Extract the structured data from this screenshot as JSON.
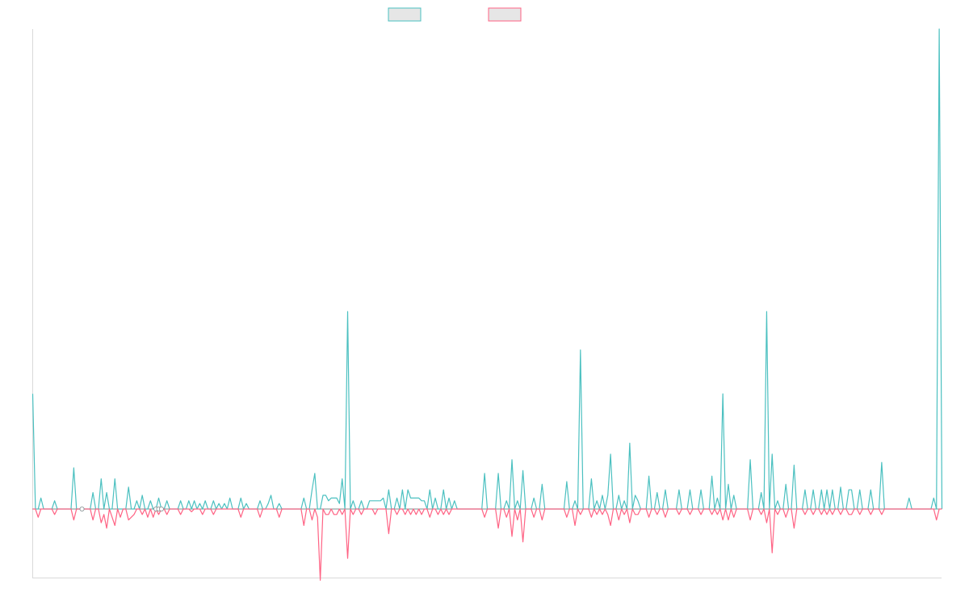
{
  "colors": {
    "series_up": "#4bc0c0",
    "series_down": "#ff6384",
    "legend_fill": "#e6e6e6",
    "axis": "#d9d9d9",
    "baseline": "#7f8c8d"
  },
  "chart_data": {
    "type": "line",
    "title": "",
    "xlabel": "",
    "ylabel": "",
    "grid": false,
    "legend_placement": "top",
    "n_points": 320,
    "ylim": [
      -0.25,
      1.75
    ],
    "baseline": 0,
    "series": [
      {
        "color": "#4bc0c0",
        "sparse_points": [
          [
            0,
            0.42
          ],
          [
            3,
            0.04
          ],
          [
            8,
            0.03
          ],
          [
            15,
            0.15
          ],
          [
            22,
            0.06
          ],
          [
            25,
            0.11
          ],
          [
            27,
            0.06
          ],
          [
            30,
            0.11
          ],
          [
            35,
            0.08
          ],
          [
            38,
            0.03
          ],
          [
            40,
            0.05
          ],
          [
            43,
            0.03
          ],
          [
            46,
            0.04
          ],
          [
            49,
            0.03
          ],
          [
            54,
            0.03
          ],
          [
            57,
            0.03
          ],
          [
            59,
            0.03
          ],
          [
            61,
            0.02
          ],
          [
            63,
            0.03
          ],
          [
            66,
            0.03
          ],
          [
            68,
            0.02
          ],
          [
            70,
            0.02
          ],
          [
            72,
            0.04
          ],
          [
            76,
            0.04
          ],
          [
            78,
            0.02
          ],
          [
            83,
            0.03
          ],
          [
            86,
            0.02
          ],
          [
            87,
            0.05
          ],
          [
            90,
            0.02
          ],
          [
            99,
            0.04
          ],
          [
            102,
            0.07
          ],
          [
            103,
            0.13
          ],
          [
            106,
            0.05
          ],
          [
            107,
            0.05
          ],
          [
            108,
            0.03
          ],
          [
            109,
            0.04
          ],
          [
            110,
            0.04
          ],
          [
            111,
            0.04
          ],
          [
            112,
            0.02
          ],
          [
            113,
            0.11
          ],
          [
            115,
            0.72
          ],
          [
            117,
            0.03
          ],
          [
            120,
            0.03
          ],
          [
            123,
            0.03
          ],
          [
            124,
            0.03
          ],
          [
            125,
            0.03
          ],
          [
            126,
            0.03
          ],
          [
            127,
            0.03
          ],
          [
            128,
            0.04
          ],
          [
            130,
            0.07
          ],
          [
            133,
            0.04
          ],
          [
            135,
            0.07
          ],
          [
            137,
            0.07
          ],
          [
            138,
            0.04
          ],
          [
            139,
            0.04
          ],
          [
            140,
            0.04
          ],
          [
            141,
            0.04
          ],
          [
            142,
            0.03
          ],
          [
            143,
            0.03
          ],
          [
            145,
            0.07
          ],
          [
            147,
            0.04
          ],
          [
            150,
            0.07
          ],
          [
            152,
            0.04
          ],
          [
            154,
            0.03
          ],
          [
            165,
            0.13
          ],
          [
            170,
            0.13
          ],
          [
            173,
            0.03
          ],
          [
            175,
            0.18
          ],
          [
            177,
            0.03
          ],
          [
            179,
            0.14
          ],
          [
            183,
            0.04
          ],
          [
            186,
            0.09
          ],
          [
            195,
            0.1
          ],
          [
            198,
            0.03
          ],
          [
            200,
            0.58
          ],
          [
            204,
            0.11
          ],
          [
            206,
            0.03
          ],
          [
            208,
            0.05
          ],
          [
            210,
            0.05
          ],
          [
            211,
            0.2
          ],
          [
            214,
            0.05
          ],
          [
            216,
            0.03
          ],
          [
            218,
            0.24
          ],
          [
            220,
            0.05
          ],
          [
            221,
            0.03
          ],
          [
            225,
            0.12
          ],
          [
            228,
            0.06
          ],
          [
            231,
            0.07
          ],
          [
            236,
            0.07
          ],
          [
            240,
            0.07
          ],
          [
            244,
            0.07
          ],
          [
            248,
            0.12
          ],
          [
            250,
            0.04
          ],
          [
            252,
            0.42
          ],
          [
            254,
            0.09
          ],
          [
            256,
            0.05
          ],
          [
            262,
            0.18
          ],
          [
            266,
            0.06
          ],
          [
            268,
            0.72
          ],
          [
            270,
            0.2
          ],
          [
            272,
            0.03
          ],
          [
            275,
            0.09
          ],
          [
            278,
            0.16
          ],
          [
            282,
            0.07
          ],
          [
            285,
            0.07
          ],
          [
            288,
            0.07
          ],
          [
            290,
            0.07
          ],
          [
            292,
            0.07
          ],
          [
            295,
            0.08
          ],
          [
            298,
            0.07
          ],
          [
            299,
            0.07
          ],
          [
            302,
            0.07
          ],
          [
            306,
            0.07
          ],
          [
            310,
            0.17
          ],
          [
            320,
            0.04
          ],
          [
            329,
            0.04
          ],
          [
            331,
            1.75
          ]
        ]
      },
      {
        "color": "#ff6384",
        "sparse_points": [
          [
            2,
            -0.03
          ],
          [
            8,
            -0.02
          ],
          [
            15,
            -0.04
          ],
          [
            22,
            -0.04
          ],
          [
            25,
            -0.05
          ],
          [
            26,
            -0.02
          ],
          [
            27,
            -0.07
          ],
          [
            29,
            -0.03
          ],
          [
            30,
            -0.06
          ],
          [
            32,
            -0.03
          ],
          [
            35,
            -0.04
          ],
          [
            36,
            -0.03
          ],
          [
            37,
            -0.02
          ],
          [
            40,
            -0.02
          ],
          [
            42,
            -0.03
          ],
          [
            44,
            -0.03
          ],
          [
            46,
            -0.02
          ],
          [
            49,
            -0.02
          ],
          [
            54,
            -0.02
          ],
          [
            58,
            -0.01
          ],
          [
            62,
            -0.02
          ],
          [
            66,
            -0.02
          ],
          [
            76,
            -0.03
          ],
          [
            83,
            -0.03
          ],
          [
            90,
            -0.03
          ],
          [
            99,
            -0.06
          ],
          [
            102,
            -0.04
          ],
          [
            104,
            -0.03
          ],
          [
            105,
            -0.26
          ],
          [
            107,
            -0.02
          ],
          [
            108,
            -0.02
          ],
          [
            110,
            -0.02
          ],
          [
            111,
            -0.02
          ],
          [
            113,
            -0.02
          ],
          [
            115,
            -0.18
          ],
          [
            117,
            -0.02
          ],
          [
            120,
            -0.02
          ],
          [
            125,
            -0.02
          ],
          [
            130,
            -0.09
          ],
          [
            133,
            -0.02
          ],
          [
            136,
            -0.02
          ],
          [
            138,
            -0.02
          ],
          [
            140,
            -0.02
          ],
          [
            142,
            -0.02
          ],
          [
            145,
            -0.03
          ],
          [
            148,
            -0.02
          ],
          [
            150,
            -0.02
          ],
          [
            152,
            -0.02
          ],
          [
            165,
            -0.03
          ],
          [
            170,
            -0.07
          ],
          [
            173,
            -0.03
          ],
          [
            175,
            -0.1
          ],
          [
            177,
            -0.04
          ],
          [
            179,
            -0.12
          ],
          [
            183,
            -0.03
          ],
          [
            186,
            -0.04
          ],
          [
            195,
            -0.03
          ],
          [
            198,
            -0.06
          ],
          [
            200,
            -0.02
          ],
          [
            204,
            -0.03
          ],
          [
            206,
            -0.02
          ],
          [
            208,
            -0.02
          ],
          [
            210,
            -0.02
          ],
          [
            211,
            -0.06
          ],
          [
            214,
            -0.04
          ],
          [
            216,
            -0.02
          ],
          [
            218,
            -0.05
          ],
          [
            220,
            -0.02
          ],
          [
            221,
            -0.02
          ],
          [
            225,
            -0.03
          ],
          [
            228,
            -0.02
          ],
          [
            231,
            -0.03
          ],
          [
            236,
            -0.02
          ],
          [
            240,
            -0.02
          ],
          [
            244,
            -0.02
          ],
          [
            248,
            -0.02
          ],
          [
            250,
            -0.02
          ],
          [
            252,
            -0.04
          ],
          [
            254,
            -0.04
          ],
          [
            256,
            -0.03
          ],
          [
            262,
            -0.04
          ],
          [
            266,
            -0.02
          ],
          [
            268,
            -0.05
          ],
          [
            270,
            -0.16
          ],
          [
            272,
            -0.02
          ],
          [
            275,
            -0.03
          ],
          [
            278,
            -0.07
          ],
          [
            282,
            -0.02
          ],
          [
            285,
            -0.02
          ],
          [
            288,
            -0.02
          ],
          [
            290,
            -0.02
          ],
          [
            292,
            -0.02
          ],
          [
            295,
            -0.02
          ],
          [
            298,
            -0.02
          ],
          [
            299,
            -0.02
          ],
          [
            302,
            -0.02
          ],
          [
            306,
            -0.02
          ],
          [
            310,
            -0.02
          ],
          [
            330,
            -0.04
          ]
        ]
      }
    ]
  }
}
